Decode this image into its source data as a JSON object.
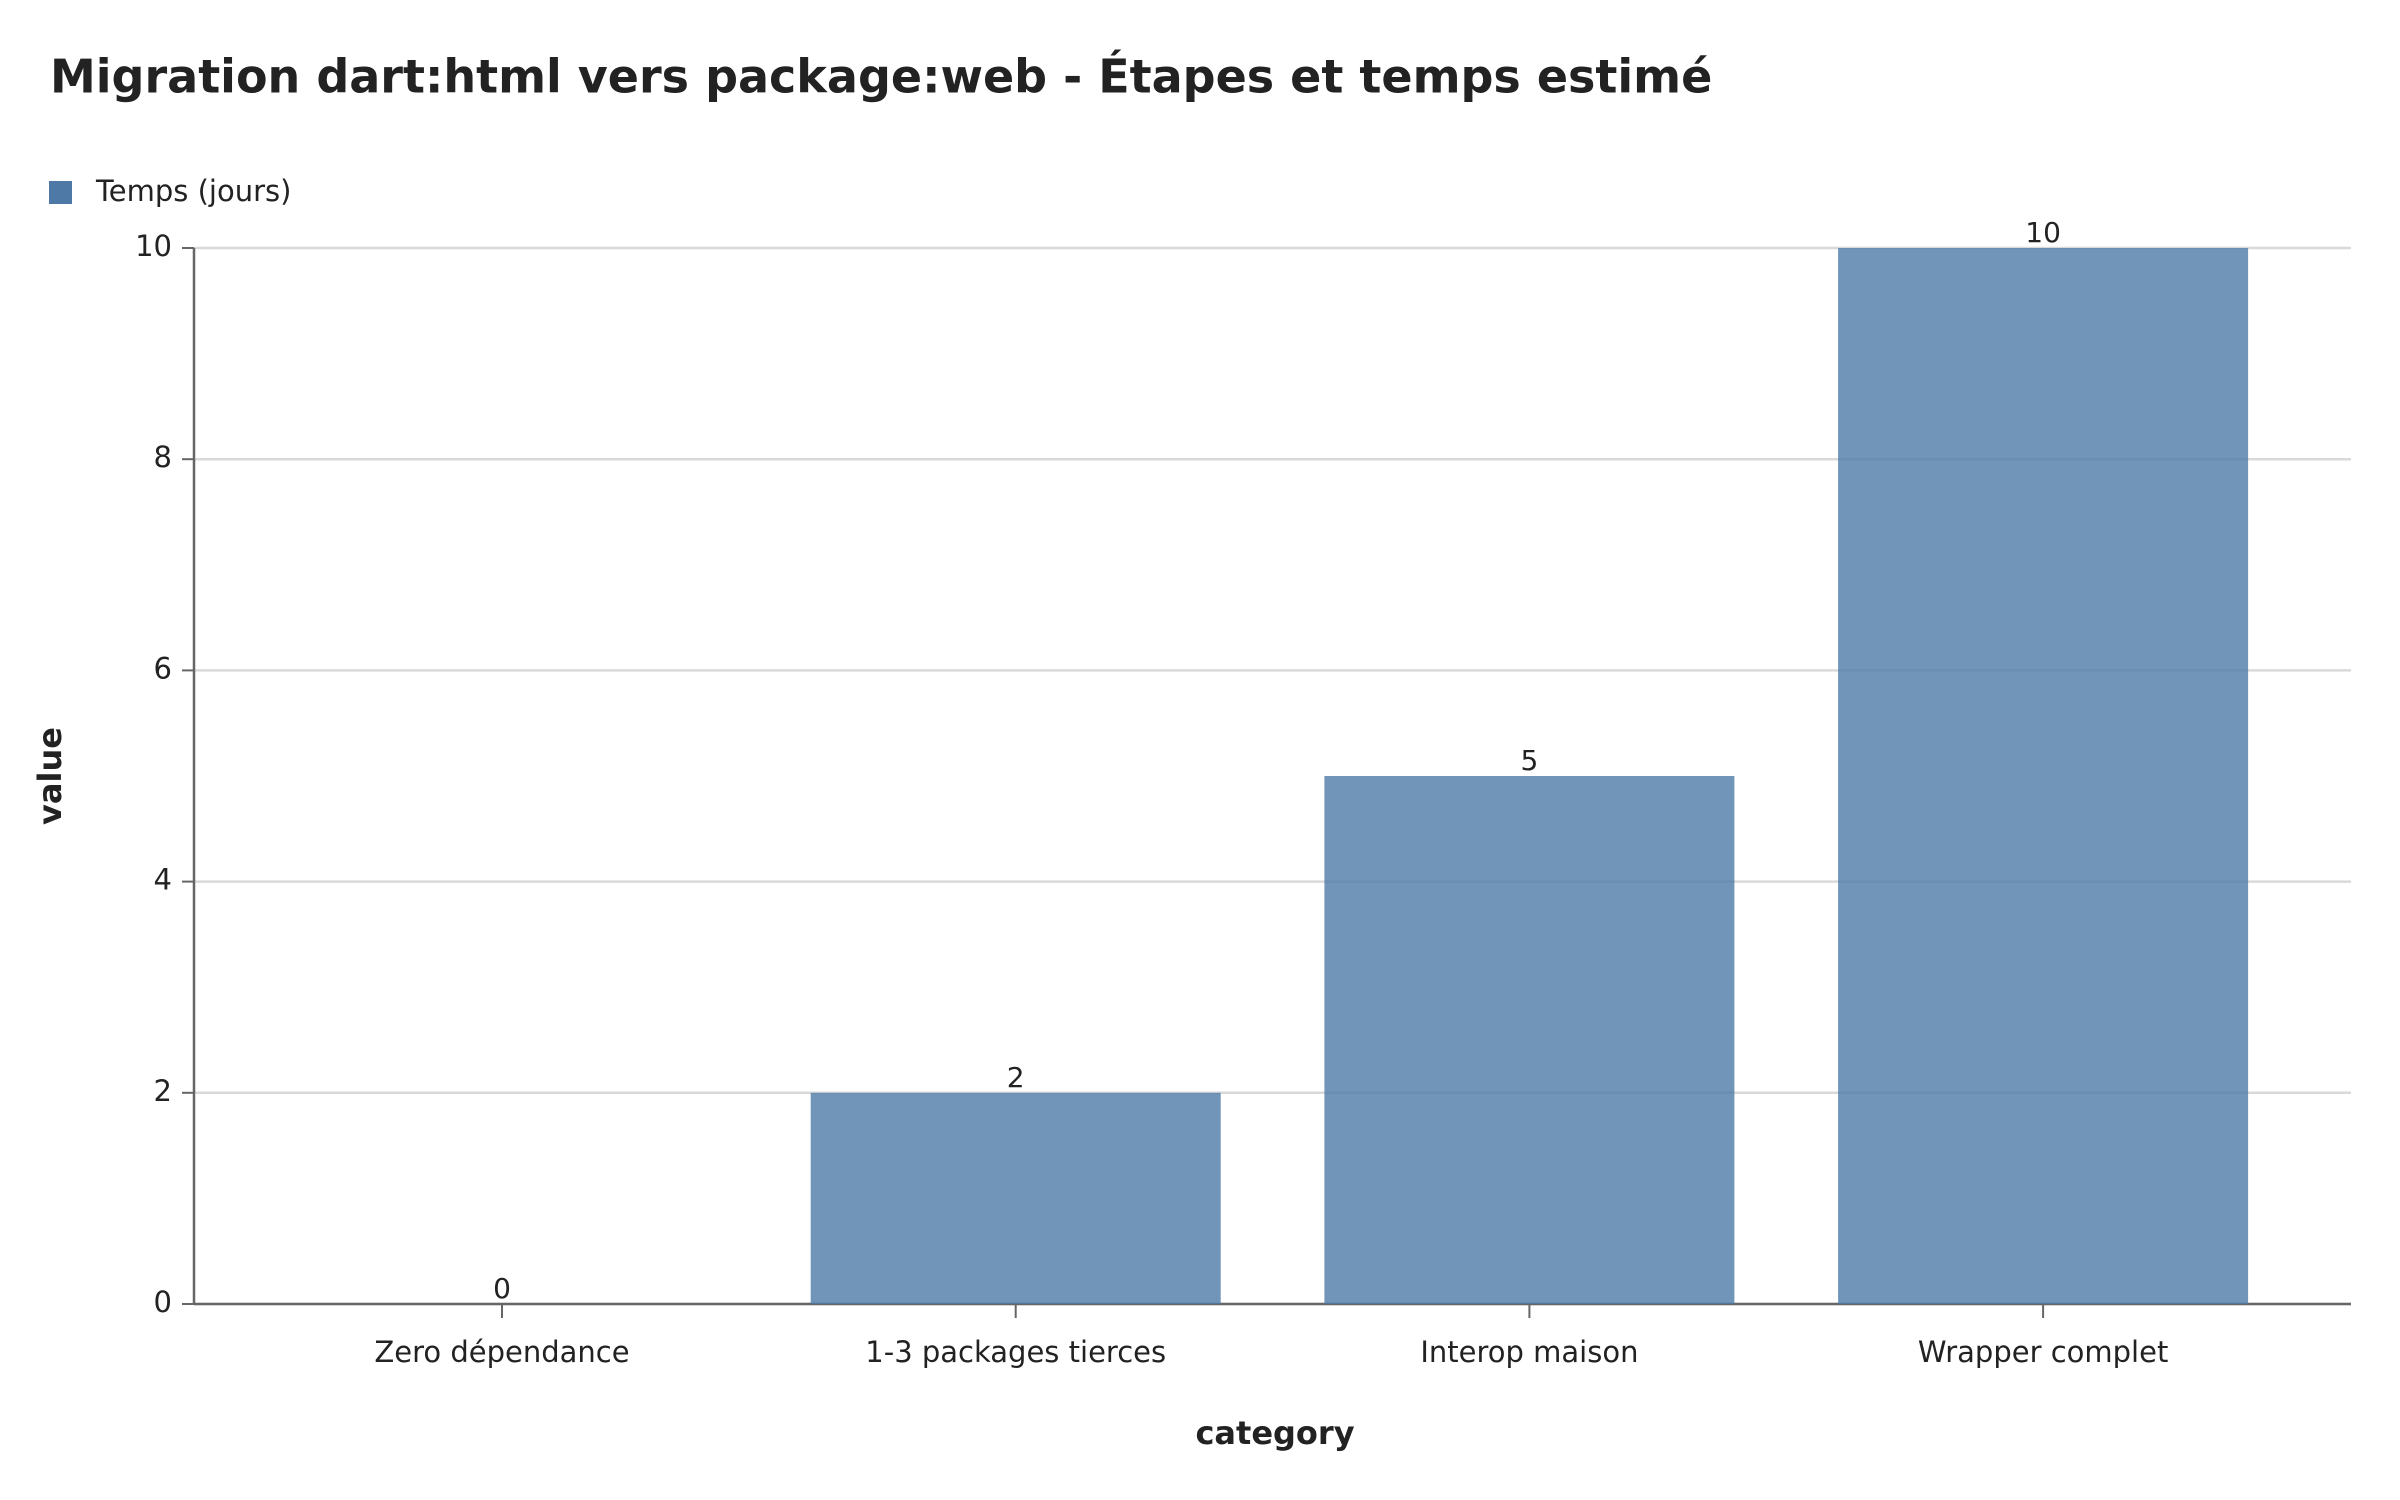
{
  "chart_data": {
    "type": "bar",
    "title": "Migration dart:html vers package:web - Étapes et temps estimé",
    "x_label": "category",
    "y_label": "value",
    "categories": [
      "Zero dépendance",
      "1-3 packages tierces",
      "Interop maison",
      "Wrapper complet"
    ],
    "series": [
      {
        "name": "Temps (jours)",
        "color": "#4e79a7",
        "values": [
          0,
          2,
          5,
          10
        ]
      }
    ],
    "ylim": [
      0,
      10
    ],
    "yticks": [
      0,
      2,
      4,
      6,
      8,
      10
    ],
    "grid": true,
    "legend": "top-left"
  }
}
